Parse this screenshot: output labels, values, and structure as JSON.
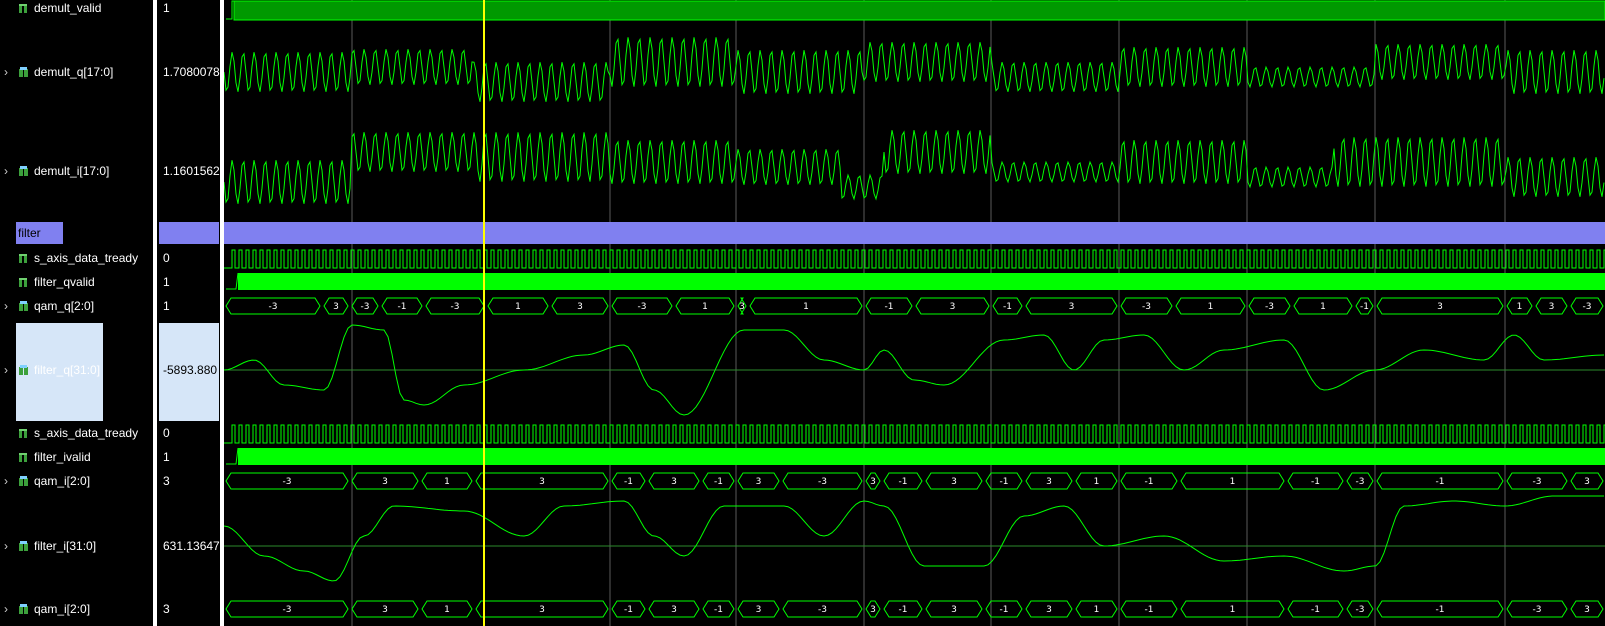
{
  "signals": [
    {
      "label": "demult_valid",
      "value": "1",
      "kind": "bit",
      "expandable": false
    },
    {
      "label": "demult_q[17:0]",
      "value": "1.7080078",
      "kind": "analog",
      "expandable": true
    },
    {
      "label": "demult_i[17:0]",
      "value": "1.1601562",
      "kind": "analog",
      "expandable": true
    },
    {
      "label": "filter",
      "value": "",
      "kind": "group",
      "expandable": false
    },
    {
      "label": "s_axis_data_tready",
      "value": "0",
      "kind": "bit",
      "expandable": false
    },
    {
      "label": "filter_qvalid",
      "value": "1",
      "kind": "bit",
      "expandable": false
    },
    {
      "label": "qam_q[2:0]",
      "value": "1",
      "kind": "bus",
      "expandable": true
    },
    {
      "label": "filter_q[31:0]",
      "value": "-5893.880",
      "kind": "analog",
      "expandable": true
    },
    {
      "label": "s_axis_data_tready",
      "value": "0",
      "kind": "bit",
      "expandable": false
    },
    {
      "label": "filter_ivalid",
      "value": "1",
      "kind": "bit",
      "expandable": false
    },
    {
      "label": "qam_i[2:0]",
      "value": "3",
      "kind": "bus",
      "expandable": true
    },
    {
      "label": "filter_i[31:0]",
      "value": "631.13647",
      "kind": "analog",
      "expandable": true
    },
    {
      "label": "qam_i[2:0]",
      "value": "3",
      "kind": "bus",
      "expandable": true
    }
  ],
  "buses": {
    "qam_q": [
      "-3",
      "3",
      "-3",
      "-1",
      "-3",
      "1",
      "3",
      "-3",
      "1",
      "3",
      "1",
      "-1",
      "3",
      "-1",
      "3",
      "-3",
      "1",
      "-3",
      "1",
      "-1",
      "3",
      "1",
      "3",
      "-3"
    ],
    "qam_i": [
      "-3",
      "3",
      "1",
      "3",
      "-1",
      "3",
      "-1",
      "3",
      "-3",
      "3",
      "-1",
      "3",
      "-1",
      "3",
      "1",
      "-1",
      "1",
      "-1",
      "-3",
      "-1",
      "-3",
      "3",
      "-3",
      "3"
    ]
  },
  "icons": {
    "chevron": "chevron-right-icon",
    "bit": "bit-signal-icon",
    "bus": "bus-signal-icon"
  },
  "colors": {
    "wave": "#00ff00",
    "wave_dark": "#009900",
    "cursor": "#ffff00",
    "group": "#8080f0",
    "selection": "#d6e6f8",
    "grid": "#5a5a5a"
  }
}
